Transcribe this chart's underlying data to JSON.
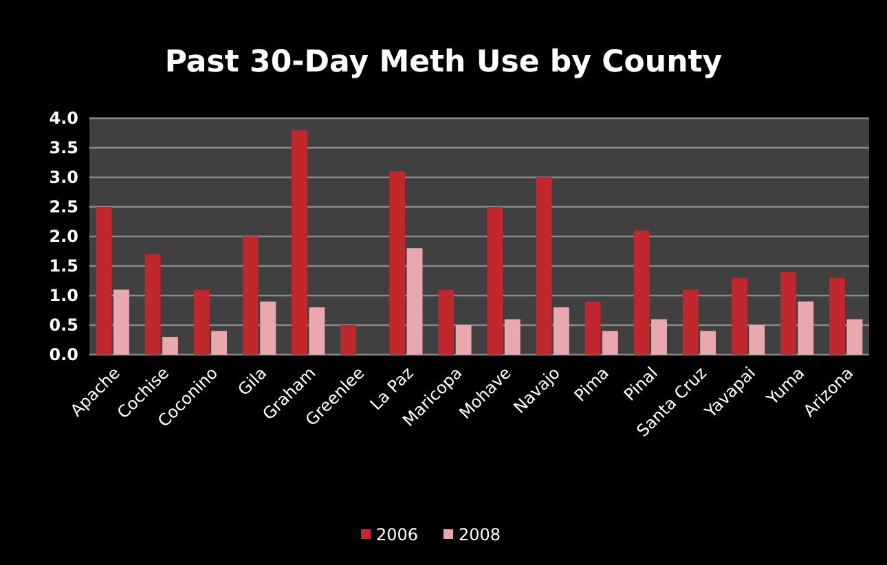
{
  "chart_data": {
    "type": "bar",
    "title": "Past 30-Day Meth Use by County",
    "categories": [
      "Apache",
      "Cochise",
      "Coconino",
      "Gila",
      "Graham",
      "Greenlee",
      "La Paz",
      "Maricopa",
      "Mohave",
      "Navajo",
      "Pima",
      "Pinal",
      "Santa Cruz",
      "Yavapai",
      "Yuma",
      "Arizona"
    ],
    "series": [
      {
        "name": "2006",
        "color": "#c0282d",
        "values": [
          2.5,
          1.7,
          1.1,
          2.0,
          3.8,
          0.5,
          3.1,
          1.1,
          2.5,
          3.0,
          0.9,
          2.1,
          1.1,
          1.3,
          1.4,
          1.3
        ]
      },
      {
        "name": "2008",
        "color": "#e8a8ae",
        "values": [
          1.1,
          0.3,
          0.4,
          0.9,
          0.8,
          null,
          1.8,
          0.5,
          0.6,
          0.8,
          0.4,
          0.6,
          0.4,
          0.5,
          0.9,
          0.6
        ]
      }
    ],
    "ylim": [
      0,
      4
    ],
    "yticks": [
      {
        "value": 0,
        "label": "0.0"
      },
      {
        "value": 0.5,
        "label": "0.5"
      },
      {
        "value": 1,
        "label": "1.0"
      },
      {
        "value": 1.5,
        "label": "1.5"
      },
      {
        "value": 2,
        "label": "2.0"
      },
      {
        "value": 2.5,
        "label": "2.5"
      },
      {
        "value": 3,
        "label": "3.0"
      },
      {
        "value": 3.5,
        "label": "3.5"
      },
      {
        "value": 4,
        "label": "4.0"
      }
    ],
    "grid": "y",
    "legend": "bottom"
  }
}
